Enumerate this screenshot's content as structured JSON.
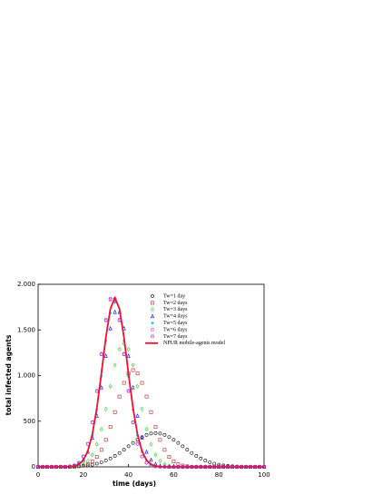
{
  "chart_data": {
    "type": "scatter",
    "x_label": "time (days)",
    "y_label": "total infected agents",
    "x": [
      0,
      2,
      4,
      6,
      8,
      10,
      12,
      14,
      16,
      18,
      20,
      22,
      24,
      26,
      28,
      30,
      32,
      34,
      36,
      38,
      40,
      42,
      44,
      46,
      48,
      50,
      52,
      54,
      56,
      58,
      60,
      62,
      64,
      66,
      68,
      70,
      72,
      74,
      76,
      78,
      80,
      82,
      84,
      86,
      88,
      90,
      92,
      94,
      96,
      98,
      100
    ],
    "xlim": [
      0,
      100
    ],
    "xticks": [
      0,
      20,
      40,
      60,
      80,
      100
    ],
    "ylim": [
      0,
      2000
    ],
    "yticks": [
      0,
      500,
      {
        "value": 1000,
        "label": "1.000"
      },
      {
        "value": 1500,
        "label": "1.500"
      },
      {
        "value": 2000,
        "label": "2.000"
      }
    ],
    "series": [
      {
        "name": "Tw=1 day",
        "color": "#000000",
        "kind": "scatter",
        "marker": "circle",
        "values": [
          0,
          0,
          0,
          0,
          0,
          0,
          1,
          2,
          4,
          7,
          11,
          16,
          24,
          35,
          50,
          69,
          92,
          120,
          152,
          187,
          225,
          262,
          296,
          326,
          350,
          365,
          370,
          365,
          350,
          326,
          296,
          262,
          225,
          187,
          152,
          120,
          92,
          69,
          50,
          35,
          24,
          16,
          11,
          7,
          4,
          2,
          1,
          0,
          0,
          0,
          0
        ]
      },
      {
        "name": "Tw=2 days",
        "color": "#b22222",
        "kind": "scatter",
        "marker": "square",
        "values": [
          0,
          0,
          0,
          0,
          0,
          0,
          0,
          0,
          0,
          6,
          14,
          30,
          59,
          109,
          186,
          295,
          436,
          600,
          770,
          920,
          1023,
          1060,
          1023,
          920,
          770,
          600,
          436,
          295,
          186,
          109,
          59,
          30,
          14,
          6,
          0,
          0,
          0,
          0,
          0,
          0,
          0,
          0,
          0,
          0,
          0,
          0,
          0,
          0,
          0,
          0,
          0
        ]
      },
      {
        "name": "Tw=3 days",
        "color": "#33cc33",
        "kind": "scatter",
        "marker": "diamond",
        "values": [
          0,
          0,
          0,
          0,
          0,
          0,
          0,
          0,
          4,
          12,
          29,
          65,
          132,
          246,
          413,
          633,
          882,
          1116,
          1288,
          1350,
          1288,
          1116,
          882,
          633,
          413,
          246,
          132,
          65,
          29,
          12,
          4,
          0,
          0,
          0,
          0,
          0,
          0,
          0,
          0,
          0,
          0,
          0,
          0,
          0,
          0,
          0,
          0,
          0,
          0,
          0,
          0
        ]
      },
      {
        "name": "Tw=4 days",
        "color": "#0000ff",
        "kind": "scatter",
        "marker": "triangle",
        "values": [
          0,
          0,
          0,
          0,
          0,
          0,
          0,
          4,
          11,
          31,
          76,
          165,
          320,
          559,
          870,
          1216,
          1517,
          1696,
          1696,
          1517,
          1216,
          870,
          559,
          320,
          165,
          76,
          31,
          11,
          4,
          0,
          0,
          0,
          0,
          0,
          0,
          0,
          0,
          0,
          0,
          0,
          0,
          0,
          0,
          0,
          0,
          0,
          0,
          0,
          0,
          0,
          0
        ]
      },
      {
        "name": "Tw=5 days",
        "color": "#00cccc",
        "kind": "scatter",
        "marker": "star",
        "values": [
          0,
          0,
          0,
          0,
          0,
          0,
          0,
          2,
          9,
          26,
          70,
          167,
          345,
          627,
          993,
          1383,
          1685,
          1800,
          1685,
          1383,
          993,
          627,
          345,
          167,
          70,
          26,
          9,
          2,
          0,
          0,
          0,
          0,
          0,
          0,
          0,
          0,
          0,
          0,
          0,
          0,
          0,
          0,
          0,
          0,
          0,
          0,
          0,
          0,
          0,
          0,
          0
        ]
      },
      {
        "name": "Tw=6 days",
        "color": "#ff33cc",
        "kind": "scatter",
        "marker": "circle",
        "values": [
          0,
          0,
          0,
          0,
          0,
          0,
          0,
          5,
          16,
          45,
          113,
          251,
          487,
          828,
          1231,
          1604,
          1830,
          1830,
          1604,
          1231,
          828,
          487,
          251,
          113,
          45,
          16,
          5,
          0,
          0,
          0,
          0,
          0,
          0,
          0,
          0,
          0,
          0,
          0,
          0,
          0,
          0,
          0,
          0,
          0,
          0,
          0,
          0,
          0,
          0,
          0,
          0
        ]
      },
      {
        "name": "Tw=7 days",
        "color": "#8a2be2",
        "kind": "scatter",
        "marker": "circle",
        "values": [
          0,
          0,
          0,
          0,
          0,
          0,
          0,
          5,
          16,
          45,
          114,
          252,
          490,
          832,
          1238,
          1612,
          1840,
          1840,
          1612,
          1238,
          832,
          490,
          252,
          114,
          45,
          16,
          5,
          0,
          0,
          0,
          0,
          0,
          0,
          0,
          0,
          0,
          0,
          0,
          0,
          0,
          0,
          0,
          0,
          0,
          0,
          0,
          0,
          0,
          0,
          0,
          0
        ]
      },
      {
        "name": "NPUR mobile-agents model",
        "color": "#ee1133",
        "kind": "line",
        "values": [
          0,
          0,
          0,
          0,
          0,
          0,
          0,
          2,
          9,
          27,
          72,
          172,
          355,
          644,
          1021,
          1421,
          1732,
          1850,
          1732,
          1421,
          1021,
          644,
          355,
          172,
          72,
          27,
          9,
          2,
          0,
          0,
          0,
          0,
          0,
          0,
          0,
          0,
          0,
          0,
          0,
          0,
          0,
          0,
          0,
          0,
          0,
          0,
          0,
          0,
          0,
          0,
          0
        ]
      }
    ]
  }
}
